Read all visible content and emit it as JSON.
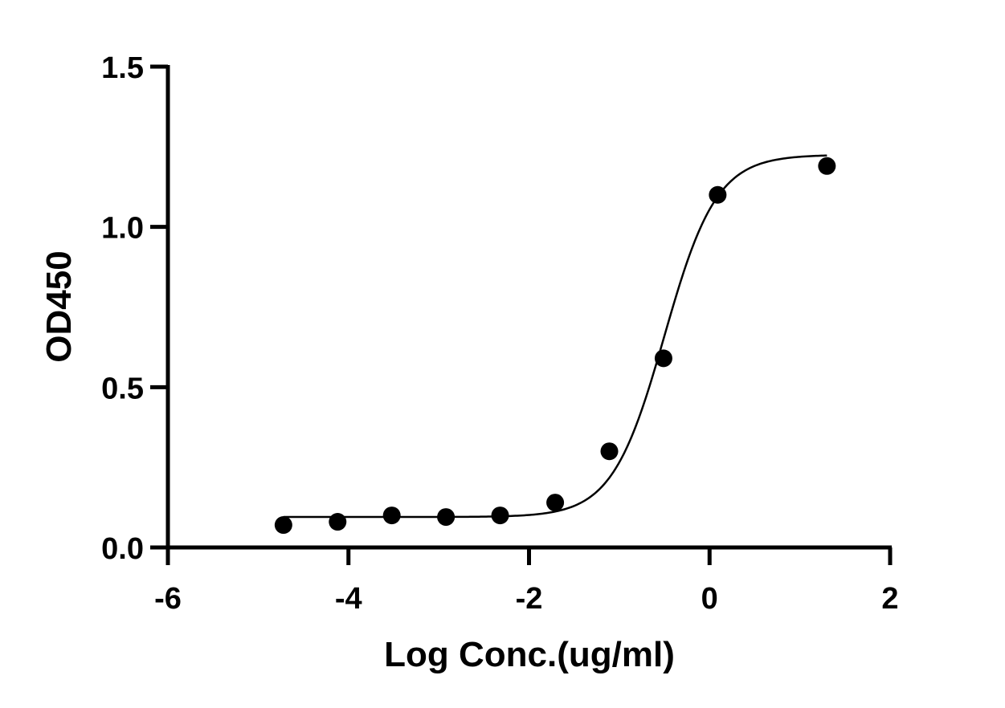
{
  "chart_data": {
    "type": "scatter",
    "title": "",
    "xlabel": "Log Conc.(ug/ml)",
    "ylabel": "OD450",
    "xlim": [
      -6,
      2
    ],
    "ylim": [
      0.0,
      1.5
    ],
    "x_ticks": [
      -6,
      -4,
      -2,
      0,
      2
    ],
    "x_tick_labels": [
      "-6",
      "-4",
      "-2",
      "0",
      "2"
    ],
    "y_ticks": [
      0.0,
      0.5,
      1.0,
      1.5
    ],
    "y_tick_labels": [
      "0.0",
      "0.5",
      "1.0",
      "1.5"
    ],
    "grid": false,
    "series": [
      {
        "x": [
          -4.72,
          -4.12,
          -3.52,
          -2.92,
          -2.32,
          -1.71,
          -1.11,
          -0.51,
          0.09,
          1.3
        ],
        "y": [
          0.07,
          0.08,
          0.1,
          0.095,
          0.1,
          0.14,
          0.3,
          0.59,
          1.1,
          1.19
        ]
      }
    ],
    "fit_curve": {
      "type": "4PL",
      "bottom": 0.095,
      "top": 1.225,
      "log_ec50": -0.5,
      "hill_slope": 1.5,
      "x_range": [
        -4.72,
        1.3
      ]
    },
    "colors": {
      "points": "#000000",
      "curve": "#000000",
      "axes": "#000000"
    }
  }
}
